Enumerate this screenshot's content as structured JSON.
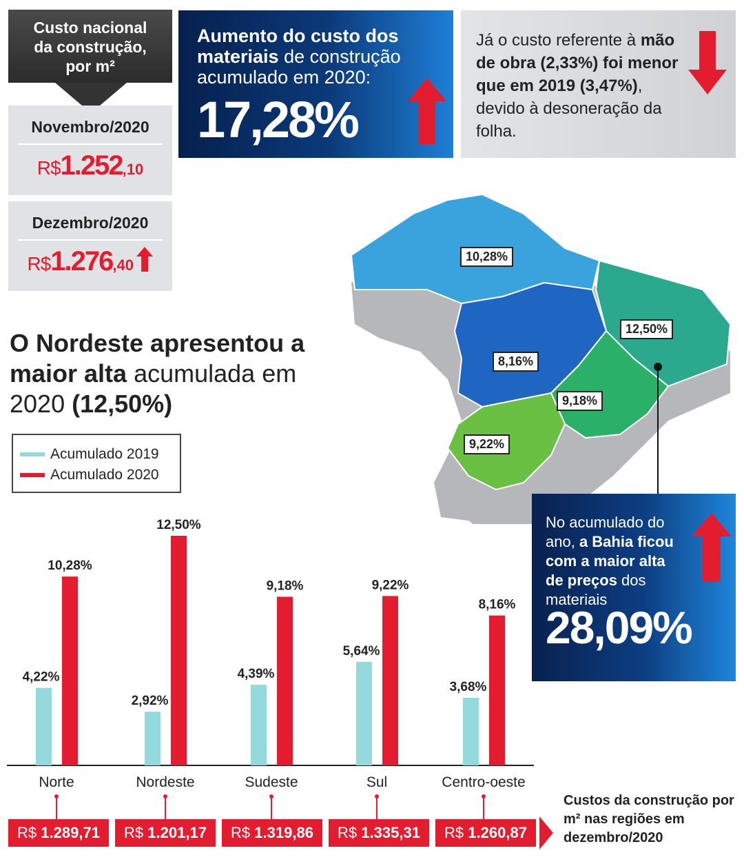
{
  "header": {
    "title_lines": [
      "Custo nacional",
      "da construção,",
      "por m²"
    ],
    "months": [
      {
        "label": "Novembro/2020",
        "currency": "R$",
        "integer": "1.252",
        "cents": ",10"
      },
      {
        "label": "Dezembro/2020",
        "currency": "R$",
        "integer": "1.276",
        "cents": ",40"
      }
    ]
  },
  "banner": {
    "text_bold": "Aumento do custo dos materiais",
    "text_rest": " de construção acumulado em 2020:",
    "value": "17,28%"
  },
  "labour": {
    "part1": "Já o custo referente à ",
    "part2_bold": "mão de obra (2,33%) foi menor que em 2019 (3,47%)",
    "part3": ", devido à desoneração da folha."
  },
  "headline": {
    "bold1": "O Nordeste apresentou a maior alta",
    "rest": " acumulada em 2020 ",
    "bold2": "(12,50%)"
  },
  "map_labels": [
    {
      "region": "Norte",
      "text": "10,28%"
    },
    {
      "region": "Centro-oeste",
      "text": "8,16%"
    },
    {
      "region": "Nordeste",
      "text": "12,50%"
    },
    {
      "region": "Sudeste",
      "text": "9,18%"
    },
    {
      "region": "Sul",
      "text": "9,22%"
    }
  ],
  "bahia": {
    "line1": "No acumulado do ano, ",
    "bold": "a Bahia ficou com a maior alta de preços",
    "line2": " dos materiais",
    "value": "28,09%"
  },
  "colors": {
    "series_2019": "#94d9dc",
    "series_2020": "#e31c30",
    "navy": "#06204e"
  },
  "chart_data": {
    "type": "bar",
    "categories": [
      "Norte",
      "Nordeste",
      "Sudeste",
      "Sul",
      "Centro-oeste"
    ],
    "series": [
      {
        "name": "Acumulado 2019",
        "values": [
          4.22,
          2.92,
          4.39,
          5.64,
          3.68
        ],
        "labels": [
          "4,22%",
          "2,92%",
          "4,39%",
          "5,64%",
          "3,68%"
        ]
      },
      {
        "name": "Acumulado 2020",
        "values": [
          10.28,
          12.5,
          9.18,
          9.22,
          8.16
        ],
        "labels": [
          "10,28%",
          "12,50%",
          "9,18%",
          "9,22%",
          "8,16%"
        ]
      }
    ],
    "ylim": [
      0,
      12.5
    ],
    "legend": "top-left",
    "costs": [
      "R$ 1.289,71",
      "R$ 1.201,17",
      "R$ 1.319,86",
      "R$ 1.335,31",
      "R$ 1.260,87"
    ],
    "costs_caption": "Custos da construção por m² nas regiões em dezembro/2020"
  }
}
